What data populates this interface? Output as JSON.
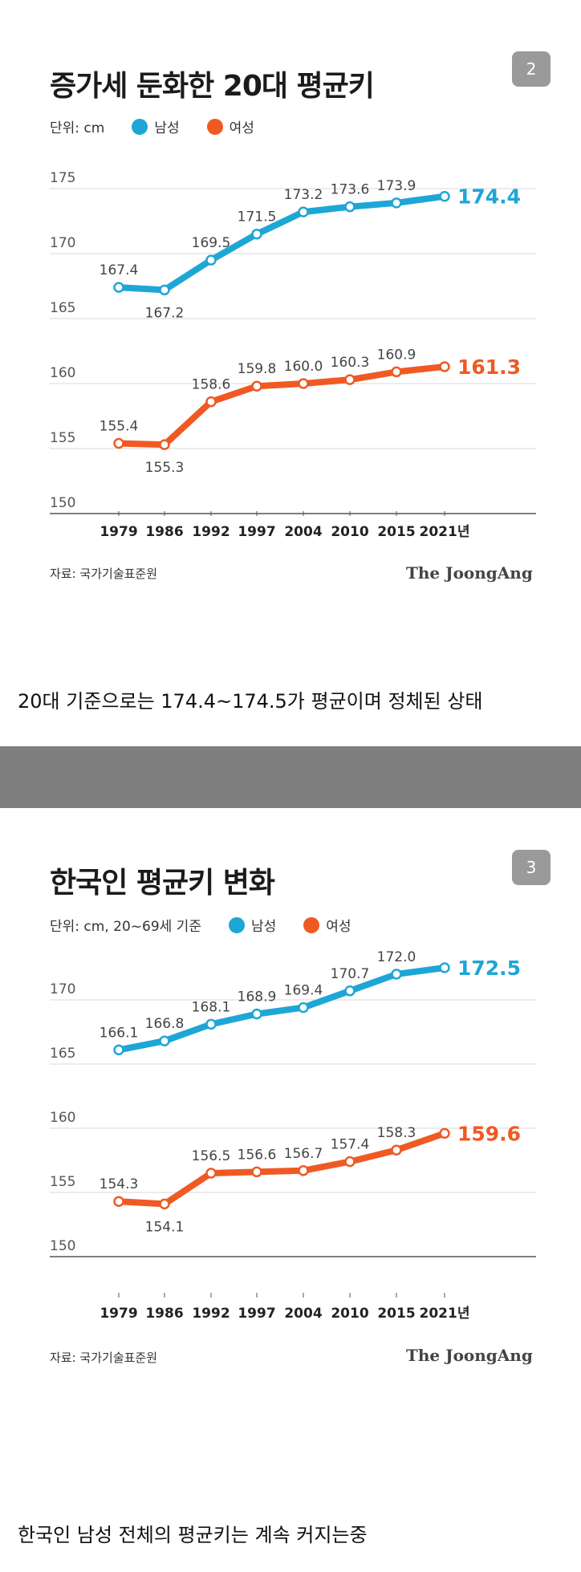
{
  "panels": [
    {
      "title": "증가세 둔화한 20대 평균키",
      "badge": "2",
      "unit_label": "단위: cm",
      "legend": [
        {
          "name": "남성",
          "color": "#1ea6d6"
        },
        {
          "name": "여성",
          "color": "#ef5a24"
        }
      ],
      "source": "자료: 국가기술표준원",
      "brand": "The JoongAng",
      "caption": "20대 기준으로는 174.4~174.5가 평균이며 정체된 상태",
      "chart_data": {
        "type": "line",
        "title": "증가세 둔화한 20대 평균키",
        "ylabel": "",
        "ylim": [
          150,
          175
        ],
        "yticks": [
          150,
          155,
          160,
          165,
          170,
          175
        ],
        "x_labels": [
          "1979",
          "1986",
          "1992",
          "1997",
          "2004",
          "2010",
          "2015",
          "2021년"
        ],
        "grid": true,
        "series": [
          {
            "name": "남성",
            "color": "#1ea6d6",
            "values": [
              167.4,
              167.2,
              169.5,
              171.5,
              173.2,
              173.6,
              173.9,
              174.4
            ],
            "labels": [
              "167.4",
              "167.2",
              "169.5",
              "171.5",
              "173.2",
              "173.6",
              "173.9",
              "174.4"
            ]
          },
          {
            "name": "여성",
            "color": "#ef5a24",
            "values": [
              155.4,
              155.3,
              158.6,
              159.8,
              160.0,
              160.3,
              160.9,
              161.3
            ],
            "labels": [
              "155.4",
              "155.3",
              "158.6",
              "159.8",
              "160.0",
              "160.3",
              "160.9",
              "161.3"
            ]
          }
        ]
      }
    },
    {
      "title": "한국인 평균키 변화",
      "badge": "3",
      "unit_label": "단위: cm, 20~69세 기준",
      "legend": [
        {
          "name": "남성",
          "color": "#1ea6d6"
        },
        {
          "name": "여성",
          "color": "#ef5a24"
        }
      ],
      "source": "자료: 국가기술표준원",
      "brand": "The JoongAng",
      "caption": "한국인 남성 전체의 평균키는 계속 커지는중",
      "chart_data": {
        "type": "line",
        "title": "한국인 평균키 변화",
        "ylabel": "",
        "ylim": [
          150,
          170
        ],
        "yticks": [
          150,
          155,
          160,
          165,
          170
        ],
        "x_labels": [
          "1979",
          "1986",
          "1992",
          "1997",
          "2004",
          "2010",
          "2015",
          "2021년"
        ],
        "grid": true,
        "series": [
          {
            "name": "남성",
            "color": "#1ea6d6",
            "values": [
              166.1,
              166.8,
              168.1,
              168.9,
              169.4,
              170.7,
              172.0,
              172.5
            ],
            "labels": [
              "166.1",
              "166.8",
              "168.1",
              "168.9",
              "169.4",
              "170.7",
              "172.0",
              "172.5"
            ]
          },
          {
            "name": "여성",
            "color": "#ef5a24",
            "values": [
              154.3,
              154.1,
              156.5,
              156.6,
              156.7,
              157.4,
              158.3,
              159.6
            ],
            "labels": [
              "154.3",
              "154.1",
              "156.5",
              "156.6",
              "156.7",
              "157.4",
              "158.3",
              "159.6"
            ]
          }
        ]
      }
    }
  ]
}
